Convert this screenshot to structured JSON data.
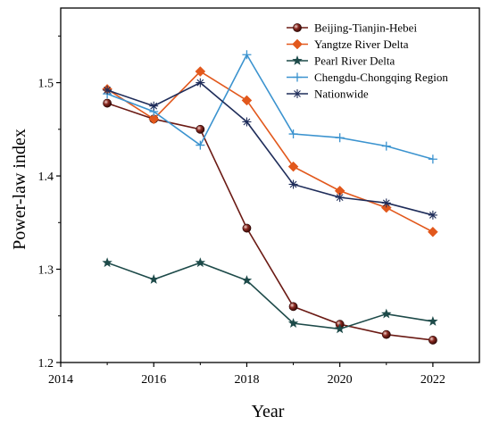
{
  "chart_data": {
    "type": "line",
    "xlabel": "Year",
    "ylabel": "Power-law index",
    "xlim": [
      2014,
      2023
    ],
    "ylim": [
      1.2,
      1.58
    ],
    "xticks": [
      2014,
      2016,
      2018,
      2020,
      2022
    ],
    "yticks": [
      1.2,
      1.3,
      1.4,
      1.5
    ],
    "ytick_labels": [
      "1.2",
      "1.3",
      "1.4",
      "1.5"
    ],
    "legend_position": "top-right",
    "grid": false,
    "x": [
      2015,
      2016,
      2017,
      2018,
      2019,
      2020,
      2021,
      2022
    ],
    "series": [
      {
        "name": "Beijing-Tianjin-Hebei",
        "color": "#6b1a14",
        "marker": "sphere",
        "values": [
          1.478,
          1.461,
          1.45,
          1.344,
          1.26,
          1.241,
          1.23,
          1.224
        ]
      },
      {
        "name": "Yangtze River Delta",
        "color": "#e2581c",
        "marker": "diamond",
        "values": [
          1.493,
          1.461,
          1.512,
          1.481,
          1.41,
          1.384,
          1.366,
          1.34
        ]
      },
      {
        "name": "Pearl River Delta",
        "color": "#1d4a49",
        "marker": "star",
        "values": [
          1.307,
          1.289,
          1.307,
          1.288,
          1.242,
          1.236,
          1.252,
          1.244
        ]
      },
      {
        "name": "Chengdu-Chongqing Region",
        "color": "#3b93cf",
        "marker": "plus",
        "values": [
          1.488,
          1.469,
          1.433,
          1.53,
          1.445,
          1.441,
          1.432,
          1.418
        ]
      },
      {
        "name": "Nationwide",
        "color": "#1f2d5a",
        "marker": "asterisk",
        "values": [
          1.492,
          1.475,
          1.5,
          1.458,
          1.391,
          1.377,
          1.371,
          1.358
        ]
      }
    ]
  }
}
